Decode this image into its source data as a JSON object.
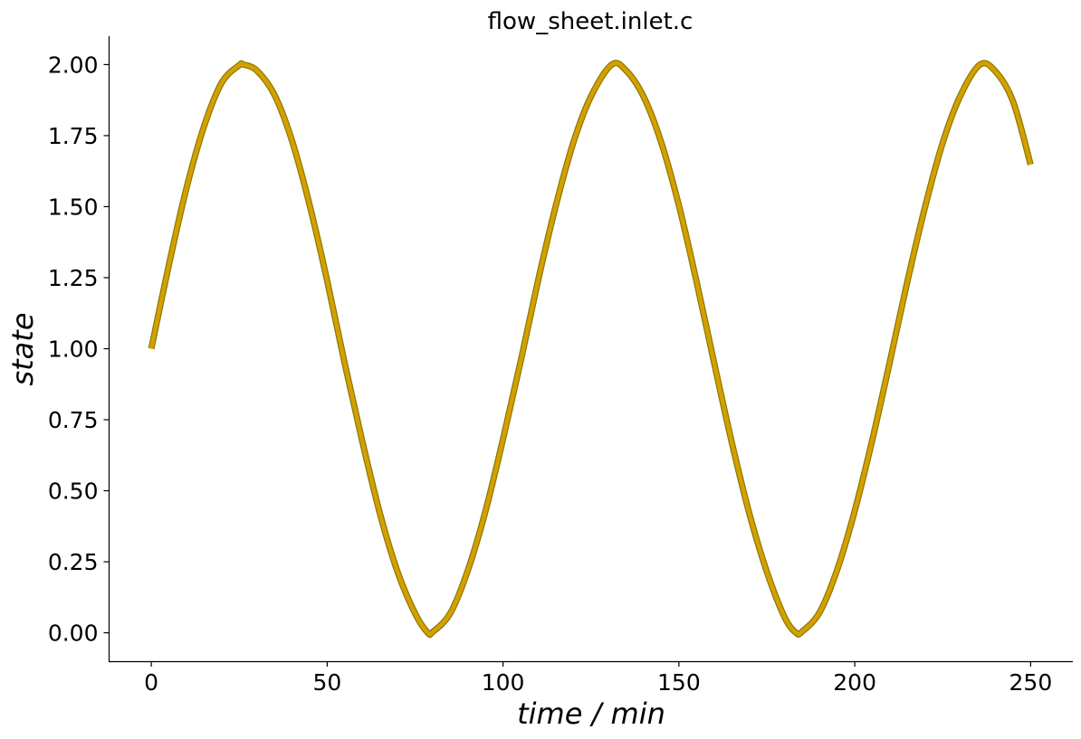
{
  "chart_data": {
    "type": "line",
    "title": "flow_sheet.inlet.c",
    "xlabel": "time / min",
    "ylabel": "state",
    "xlim": [
      -12,
      262
    ],
    "ylim": [
      -0.1,
      2.1
    ],
    "x_ticks": [
      0,
      50,
      100,
      150,
      200,
      250
    ],
    "x_tick_labels": [
      "0",
      "50",
      "100",
      "150",
      "200",
      "250"
    ],
    "y_ticks": [
      0,
      0.25,
      0.5,
      0.75,
      1.0,
      1.25,
      1.5,
      1.75,
      2.0
    ],
    "y_tick_labels": [
      "0.00",
      "0.25",
      "0.50",
      "0.75",
      "1.00",
      "1.25",
      "1.50",
      "1.75",
      "2.00"
    ],
    "grid": false,
    "series_color": "#d4a000",
    "series_edge_color": "#8c7a00",
    "series": [
      {
        "x": [
          0,
          5,
          10,
          15,
          20,
          25,
          26.2,
          30,
          35,
          40,
          45,
          50,
          55,
          60,
          65,
          70,
          75,
          78.6,
          80,
          85,
          90,
          95,
          100,
          105,
          110,
          115,
          120,
          125,
          130.9,
          135,
          140,
          145,
          150,
          155,
          160,
          165,
          170,
          175,
          180,
          183.3,
          185,
          190,
          195,
          200,
          205,
          210,
          215,
          220,
          225,
          230,
          235.6,
          240,
          245,
          250
        ],
        "y": [
          1.0,
          1.295,
          1.565,
          1.783,
          1.936,
          1.998,
          2.0,
          1.979,
          1.894,
          1.732,
          1.506,
          1.239,
          0.947,
          0.673,
          0.42,
          0.215,
          0.068,
          0.0,
          0.003,
          0.069,
          0.22,
          0.428,
          0.682,
          0.955,
          1.242,
          1.503,
          1.726,
          1.888,
          2.0,
          1.979,
          1.886,
          1.725,
          1.504,
          1.237,
          0.951,
          0.672,
          0.421,
          0.215,
          0.056,
          0.0,
          0.004,
          0.072,
          0.222,
          0.43,
          0.68,
          0.956,
          1.239,
          1.5,
          1.725,
          1.89,
          2.0,
          1.976,
          1.87,
          1.648
        ]
      }
    ]
  }
}
